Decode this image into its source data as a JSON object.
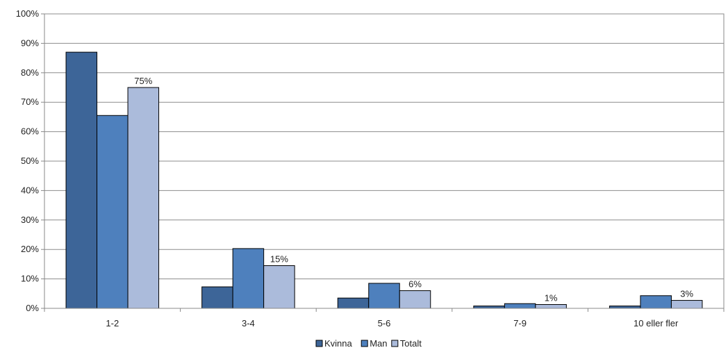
{
  "chart_data": {
    "type": "bar",
    "title": "",
    "xlabel": "",
    "ylabel": "",
    "categories": [
      "1-2",
      "3-4",
      "5-6",
      "7-9",
      "10 eller fler"
    ],
    "series": [
      {
        "name": "Kvinna",
        "color": "#3d6598",
        "values": [
          87,
          7.3,
          3.5,
          0.8,
          0.8
        ]
      },
      {
        "name": "Man",
        "color": "#4e80bd",
        "values": [
          65.5,
          20.3,
          8.5,
          1.6,
          4.3
        ]
      },
      {
        "name": "Totalt",
        "color": "#abbbdb",
        "values": [
          75,
          14.5,
          6,
          1.3,
          2.7
        ]
      }
    ],
    "data_labels": {
      "series": "Totalt",
      "labels": [
        "75%",
        "15%",
        "6%",
        "1%",
        "3%"
      ]
    },
    "ylim": [
      0,
      100
    ],
    "yticks": [
      0,
      10,
      20,
      30,
      40,
      50,
      60,
      70,
      80,
      90,
      100
    ],
    "ytick_labels": [
      "0%",
      "10%",
      "20%",
      "30%",
      "40%",
      "50%",
      "60%",
      "70%",
      "80%",
      "90%",
      "100%"
    ],
    "grid": true,
    "legend_position": "bottom"
  }
}
